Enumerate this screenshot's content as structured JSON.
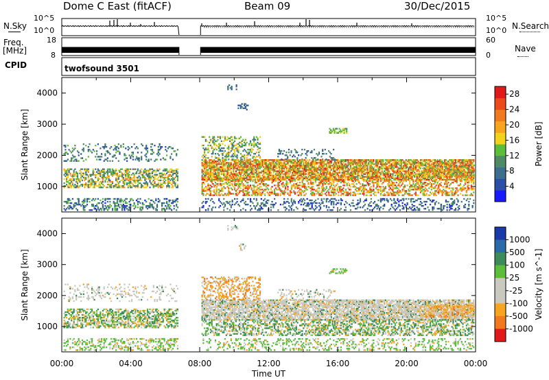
{
  "header": {
    "station": "Dome C East (fitACF)",
    "beam": "Beam 09",
    "date": "30/Dec/2015"
  },
  "top_panels": {
    "nsky_label": "N.Sky",
    "nsky_ticks": [
      "10^5",
      "10^0"
    ],
    "nsearch_label": "N.Search",
    "nsearch_ticks": [
      "10^5",
      "10^0"
    ],
    "freq_label": "Freq.",
    "freq_unit": "[MHz]",
    "freq_ticks": [
      "18",
      "8"
    ],
    "nave_label": "Nave",
    "nave_ticks": [
      "60",
      "0"
    ],
    "cpid_label": "CPID",
    "cpid_value": "twofsound 3501"
  },
  "colors": {
    "power": [
      "#1a1aff",
      "#2b4fa8",
      "#3d6e8e",
      "#4f8a66",
      "#5cbd3a",
      "#f2d21a",
      "#f7a51e",
      "#f27a1e",
      "#ec4a1a",
      "#e01a1a"
    ],
    "velocity": [
      "#e01a1a",
      "#f27a1e",
      "#f7a51e",
      "#c9c9c0",
      "#c9c9c0",
      "#5cbd3a",
      "#3d8a5a",
      "#2b6aa8",
      "#1a3aa8"
    ]
  },
  "chart_data": [
    {
      "type": "heatmap",
      "name": "power",
      "title": "",
      "xlabel": "",
      "ylabel": "Slant Range [km]",
      "xlim": [
        0,
        24
      ],
      "ylim": [
        180,
        4500
      ],
      "x_ticks": [],
      "y_ticks": [
        "1000",
        "2000",
        "3000",
        "4000"
      ],
      "data_gap_hours": [
        6.8,
        8.05
      ],
      "colorbar": {
        "label": "Power [dB]",
        "min": 0,
        "max": 30,
        "ticks": [
          "4",
          "8",
          "12",
          "16",
          "20",
          "24",
          "28"
        ]
      }
    },
    {
      "type": "heatmap",
      "name": "velocity",
      "title": "",
      "xlabel": "Time UT",
      "ylabel": "Slant Range [km]",
      "xlim": [
        0,
        24
      ],
      "ylim": [
        180,
        4500
      ],
      "x_ticks": [
        "00:00",
        "04:00",
        "08:00",
        "12:00",
        "16:00",
        "20:00",
        "00:00"
      ],
      "y_ticks": [
        "1000",
        "2000",
        "3000",
        "4000"
      ],
      "data_gap_hours": [
        6.8,
        8.05
      ],
      "colorbar": {
        "label": "Velocity [m s^-1]",
        "ticks": [
          "1000",
          "500",
          "100",
          "25",
          "-25",
          "-100",
          "-500",
          "-1000"
        ]
      }
    }
  ]
}
